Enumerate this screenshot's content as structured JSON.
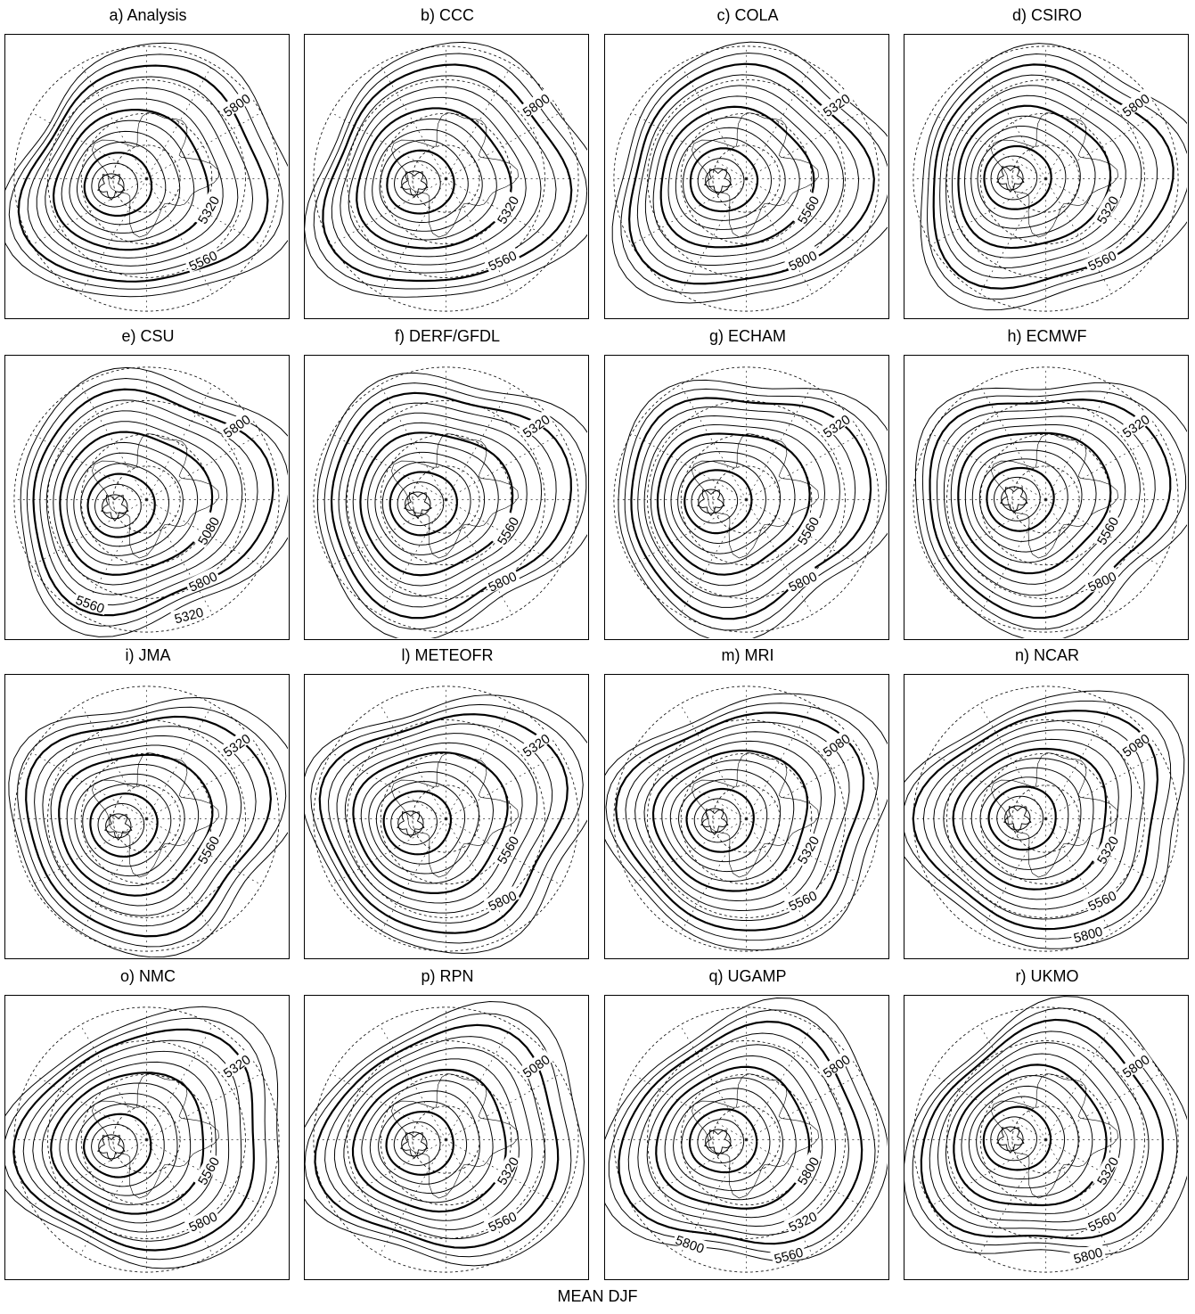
{
  "footer": "MEAN DJF",
  "panels": [
    {
      "title": "a) Analysis",
      "labels": [
        "5800",
        "5320",
        "5560"
      ]
    },
    {
      "title": "b) CCC",
      "labels": [
        "5800",
        "5320",
        "5560"
      ]
    },
    {
      "title": "c) COLA",
      "labels": [
        "5320",
        "5560",
        "5800"
      ]
    },
    {
      "title": "d) CSIRO",
      "labels": [
        "5800",
        "5320",
        "5560"
      ]
    },
    {
      "title": "e) CSU",
      "labels": [
        "5800",
        "5080",
        "5800",
        "5320",
        "5560"
      ]
    },
    {
      "title": "f) DERF/GFDL",
      "labels": [
        "5320",
        "5560",
        "5800"
      ]
    },
    {
      "title": "g) ECHAM",
      "labels": [
        "5320",
        "5560",
        "5800"
      ]
    },
    {
      "title": "h) ECMWF",
      "labels": [
        "5320",
        "5560",
        "5800"
      ]
    },
    {
      "title": "i) JMA",
      "labels": [
        "5320",
        "5560"
      ]
    },
    {
      "title": "l) METEOFR",
      "labels": [
        "5320",
        "5560",
        "5800"
      ]
    },
    {
      "title": "m) MRI",
      "labels": [
        "5080",
        "5320",
        "5560"
      ]
    },
    {
      "title": "n) NCAR",
      "labels": [
        "5080",
        "5320",
        "5560",
        "5800"
      ]
    },
    {
      "title": "o) NMC",
      "labels": [
        "5320",
        "5560",
        "5800"
      ]
    },
    {
      "title": "p) RPN",
      "labels": [
        "5080",
        "5320",
        "5560"
      ]
    },
    {
      "title": "q) UGAMP",
      "labels": [
        "5800",
        "5800",
        "5320",
        "5560",
        "5800"
      ]
    },
    {
      "title": "r) UKMO",
      "labels": [
        "5800",
        "5320",
        "5560",
        "5800"
      ]
    }
  ]
}
